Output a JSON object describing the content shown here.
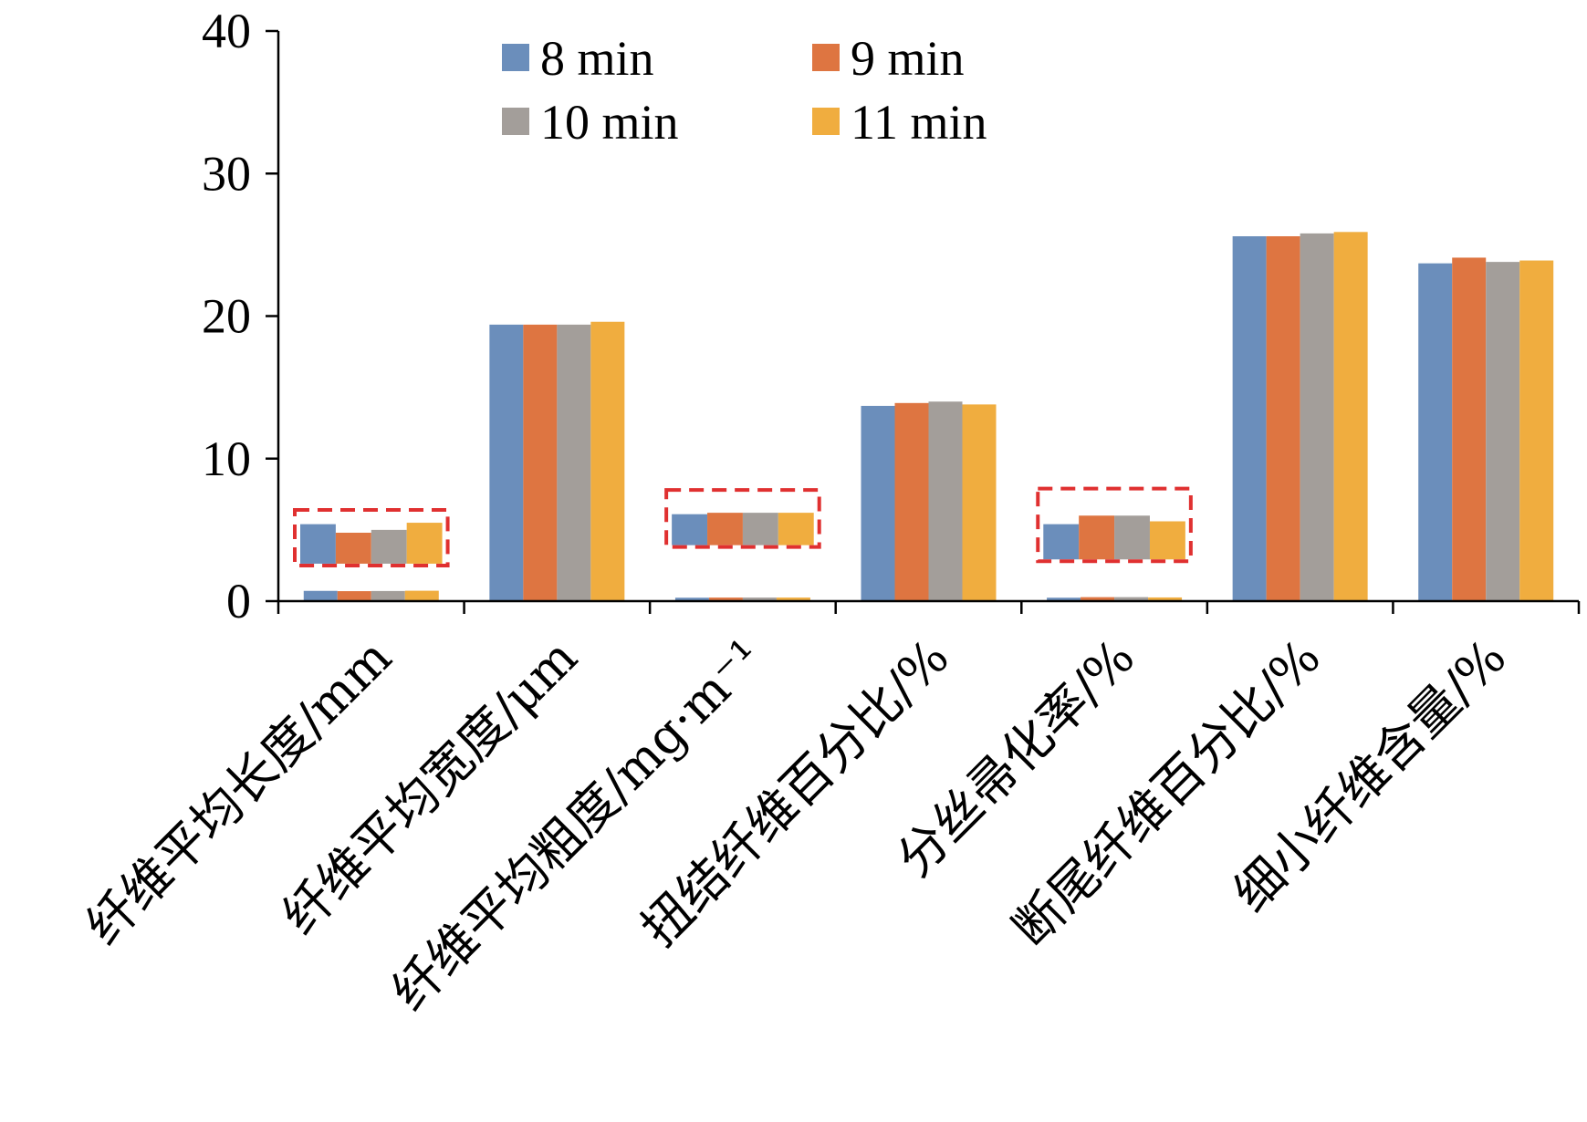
{
  "chart_data": {
    "type": "bar",
    "title": "",
    "xlabel": "",
    "ylabel": "",
    "ylim": [
      0,
      40
    ],
    "yticks": [
      0,
      10,
      20,
      30,
      40
    ],
    "grid": false,
    "legend_position": "top",
    "categories": [
      "纤维平均长度/mm",
      "纤维平均宽度/μm",
      "纤维平均粗度/mg·m⁻¹",
      "扭结纤维百分比/%",
      "分丝帚化率/%",
      "断尾纤维百分比/%",
      "细小纤维含量/%"
    ],
    "series": [
      {
        "name": "8 min",
        "color": "#6B8EBB",
        "values": [
          0.72,
          19.4,
          0.24,
          13.7,
          0.24,
          25.6,
          23.7
        ]
      },
      {
        "name": "9 min",
        "color": "#DE7541",
        "values": [
          0.7,
          19.4,
          0.25,
          13.9,
          0.28,
          25.6,
          24.1
        ]
      },
      {
        "name": "10 min",
        "color": "#A39E9A",
        "values": [
          0.71,
          19.4,
          0.25,
          14.0,
          0.28,
          25.8,
          23.8
        ]
      },
      {
        "name": "11 min",
        "color": "#F0AD3F",
        "values": [
          0.73,
          19.6,
          0.25,
          13.8,
          0.26,
          25.9,
          23.9
        ]
      }
    ],
    "magnified_insets": [
      {
        "category_index": 0,
        "values": [
          5.4,
          4.8,
          5.0,
          5.5
        ],
        "box_range": [
          2.5,
          6.4
        ]
      },
      {
        "category_index": 2,
        "values": [
          6.1,
          6.2,
          6.2,
          6.2
        ],
        "box_range": [
          3.8,
          7.8
        ]
      },
      {
        "category_index": 4,
        "values": [
          5.4,
          6.0,
          6.0,
          5.6
        ],
        "box_range": [
          2.8,
          7.9
        ]
      }
    ]
  }
}
